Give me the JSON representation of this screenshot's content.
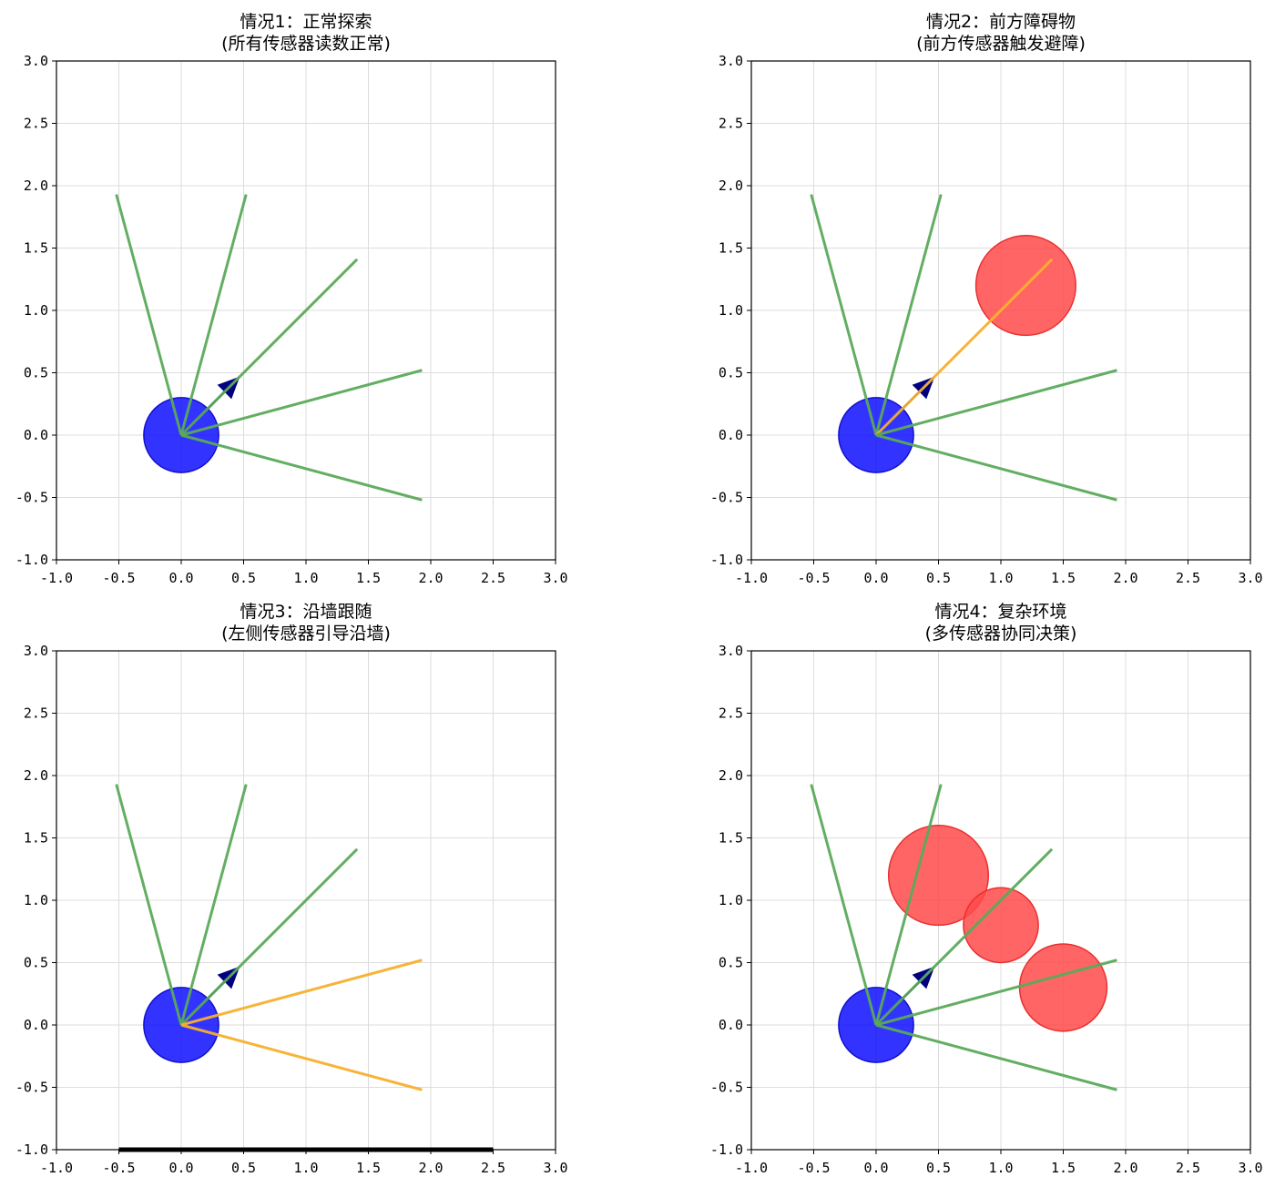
{
  "chart_data": [
    {
      "type": "scatter",
      "title": "情况1：正常探索",
      "subtitle": "(所有传感器读数正常)",
      "xlim": [
        -1.0,
        3.0
      ],
      "ylim": [
        -1.0,
        3.0
      ],
      "x_ticks": [
        "-1.0",
        "-0.5",
        "0.0",
        "0.5",
        "1.0",
        "1.5",
        "2.0",
        "2.5",
        "3.0"
      ],
      "y_ticks": [
        "3.0",
        "2.5",
        "2.0",
        "1.5",
        "1.0",
        "0.5",
        "0.0",
        "-0.5",
        "-1.0"
      ],
      "grid": true,
      "robot": {
        "x": 0,
        "y": 0,
        "r": 0.3,
        "color": "#0000ff"
      },
      "heading_arrow": {
        "x1": 0,
        "y1": 0,
        "x2": 0.47,
        "y2": 0.47,
        "color": "#000080"
      },
      "sensor_rays": [
        {
          "x2": -0.52,
          "y2": 1.93,
          "color": "#5aaa5a"
        },
        {
          "x2": 0.52,
          "y2": 1.93,
          "color": "#5aaa5a"
        },
        {
          "x2": 1.41,
          "y2": 1.41,
          "color": "#5aaa5a"
        },
        {
          "x2": 1.93,
          "y2": 0.52,
          "color": "#5aaa5a"
        },
        {
          "x2": 1.93,
          "y2": -0.52,
          "color": "#5aaa5a"
        }
      ],
      "obstacles": [],
      "walls": []
    },
    {
      "type": "scatter",
      "title": "情况2：前方障碍物",
      "subtitle": "(前方传感器触发避障)",
      "xlim": [
        -1.0,
        3.0
      ],
      "ylim": [
        -1.0,
        3.0
      ],
      "x_ticks": [
        "-1.0",
        "-0.5",
        "0.0",
        "0.5",
        "1.0",
        "1.5",
        "2.0",
        "2.5",
        "3.0"
      ],
      "y_ticks": [
        "3.0",
        "2.5",
        "2.0",
        "1.5",
        "1.0",
        "0.5",
        "0.0",
        "-0.5",
        "-1.0"
      ],
      "grid": true,
      "robot": {
        "x": 0,
        "y": 0,
        "r": 0.3,
        "color": "#0000ff"
      },
      "heading_arrow": {
        "x1": 0,
        "y1": 0,
        "x2": 0.47,
        "y2": 0.47,
        "color": "#000080"
      },
      "sensor_rays": [
        {
          "x2": -0.52,
          "y2": 1.93,
          "color": "#5aaa5a"
        },
        {
          "x2": 0.52,
          "y2": 1.93,
          "color": "#5aaa5a"
        },
        {
          "x2": 1.41,
          "y2": 1.41,
          "color": "#f5b02e"
        },
        {
          "x2": 1.93,
          "y2": 0.52,
          "color": "#5aaa5a"
        },
        {
          "x2": 1.93,
          "y2": -0.52,
          "color": "#5aaa5a"
        }
      ],
      "obstacles": [
        {
          "x": 1.2,
          "y": 1.2,
          "r": 0.4,
          "color": "#ff4a4a"
        }
      ],
      "walls": []
    },
    {
      "type": "scatter",
      "title": "情况3：沿墙跟随",
      "subtitle": "(左侧传感器引导沿墙)",
      "xlim": [
        -1.0,
        3.0
      ],
      "ylim": [
        -1.0,
        3.0
      ],
      "x_ticks": [
        "-1.0",
        "-0.5",
        "0.0",
        "0.5",
        "1.0",
        "1.5",
        "2.0",
        "2.5",
        "3.0"
      ],
      "y_ticks": [
        "3.0",
        "2.5",
        "2.0",
        "1.5",
        "1.0",
        "0.5",
        "0.0",
        "-0.5",
        "-1.0"
      ],
      "grid": true,
      "robot": {
        "x": 0,
        "y": 0,
        "r": 0.3,
        "color": "#0000ff"
      },
      "heading_arrow": {
        "x1": 0,
        "y1": 0,
        "x2": 0.47,
        "y2": 0.47,
        "color": "#000080"
      },
      "sensor_rays": [
        {
          "x2": -0.52,
          "y2": 1.93,
          "color": "#5aaa5a"
        },
        {
          "x2": 0.52,
          "y2": 1.93,
          "color": "#5aaa5a"
        },
        {
          "x2": 1.41,
          "y2": 1.41,
          "color": "#5aaa5a"
        },
        {
          "x2": 1.93,
          "y2": 0.52,
          "color": "#f5b02e"
        },
        {
          "x2": 1.93,
          "y2": -0.52,
          "color": "#f5b02e"
        }
      ],
      "obstacles": [],
      "walls": [
        {
          "x1": -0.5,
          "y1": -1.0,
          "x2": 2.5,
          "y2": -1.0,
          "color": "#000000"
        }
      ]
    },
    {
      "type": "scatter",
      "title": "情况4：复杂环境",
      "subtitle": "(多传感器协同决策)",
      "xlim": [
        -1.0,
        3.0
      ],
      "ylim": [
        -1.0,
        3.0
      ],
      "x_ticks": [
        "-1.0",
        "-0.5",
        "0.0",
        "0.5",
        "1.0",
        "1.5",
        "2.0",
        "2.5",
        "3.0"
      ],
      "y_ticks": [
        "3.0",
        "2.5",
        "2.0",
        "1.5",
        "1.0",
        "0.5",
        "0.0",
        "-0.5",
        "-1.0"
      ],
      "grid": true,
      "robot": {
        "x": 0,
        "y": 0,
        "r": 0.3,
        "color": "#0000ff"
      },
      "heading_arrow": {
        "x1": 0,
        "y1": 0,
        "x2": 0.47,
        "y2": 0.47,
        "color": "#000080"
      },
      "sensor_rays": [
        {
          "x2": -0.52,
          "y2": 1.93,
          "color": "#5aaa5a"
        },
        {
          "x2": 0.52,
          "y2": 1.93,
          "color": "#5aaa5a"
        },
        {
          "x2": 1.41,
          "y2": 1.41,
          "color": "#5aaa5a"
        },
        {
          "x2": 1.93,
          "y2": 0.52,
          "color": "#5aaa5a"
        },
        {
          "x2": 1.93,
          "y2": -0.52,
          "color": "#5aaa5a"
        }
      ],
      "obstacles": [
        {
          "x": 0.5,
          "y": 1.2,
          "r": 0.4,
          "color": "#ff4a4a"
        },
        {
          "x": 1.0,
          "y": 0.8,
          "r": 0.3,
          "color": "#ff4a4a"
        },
        {
          "x": 1.5,
          "y": 0.3,
          "r": 0.35,
          "color": "#ff4a4a"
        }
      ],
      "walls": []
    }
  ]
}
